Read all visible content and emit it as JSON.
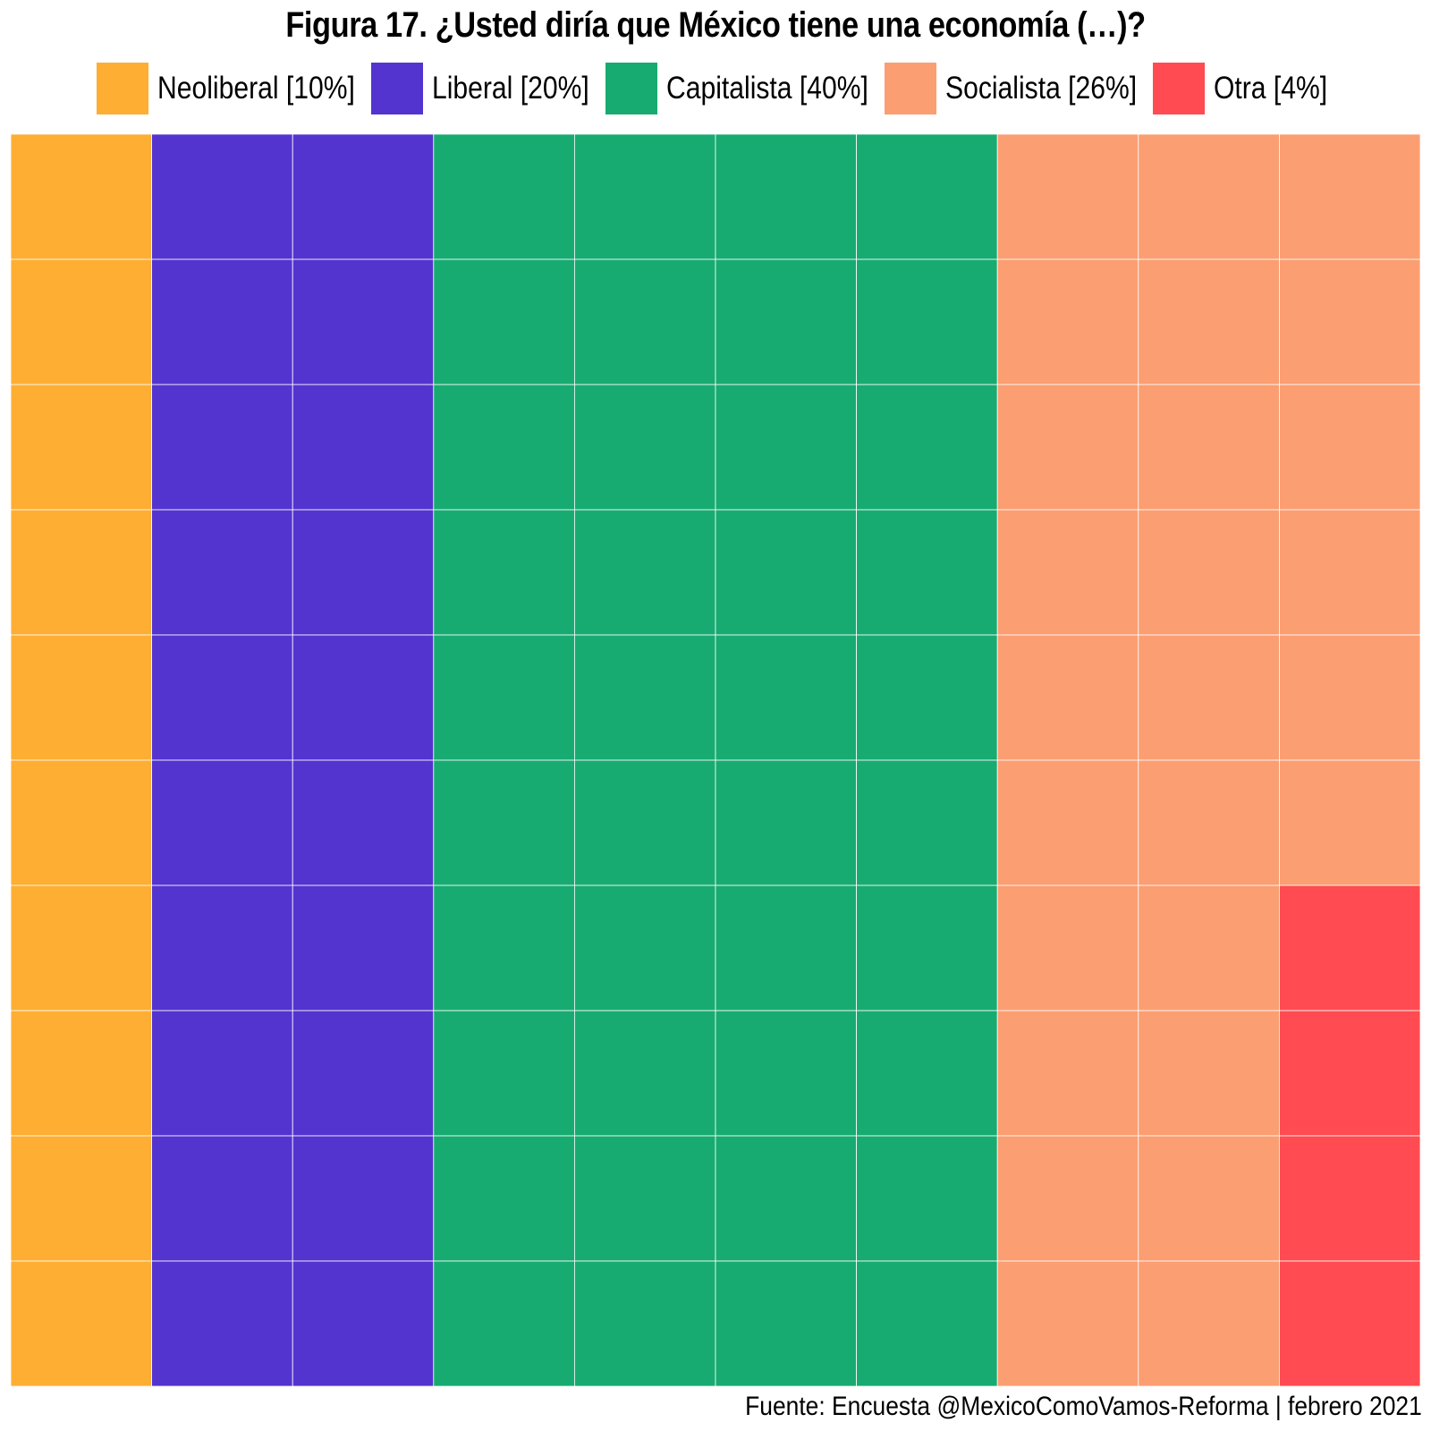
{
  "chart_data": {
    "type": "waffle",
    "title": "Figura 17. ¿Usted diría que México tiene una economía (…)?",
    "grid": {
      "columns": 10,
      "rows": 10,
      "fill_order": "column-major from top-left"
    },
    "categories": [
      {
        "name": "Neoliberal",
        "value": 10,
        "legend_label": "Neoliberal [10%]",
        "color": "#FDAE33"
      },
      {
        "name": "Liberal",
        "value": 20,
        "legend_label": "Liberal [20%]",
        "color": "#5334CF"
      },
      {
        "name": "Capitalista",
        "value": 40,
        "legend_label": "Capitalista [40%]",
        "color": "#17AB72"
      },
      {
        "name": "Socialista",
        "value": 26,
        "legend_label": "Socialista [26%]",
        "color": "#FB9E72"
      },
      {
        "name": "Otra",
        "value": 4,
        "legend_label": "Otra [4%]",
        "color": "#FF4B51"
      }
    ],
    "legend_position": "top",
    "cell_border_color": "#ffffff"
  },
  "source": "Fuente: Encuesta @MexicoComoVamos-Reforma | febrero 2021"
}
